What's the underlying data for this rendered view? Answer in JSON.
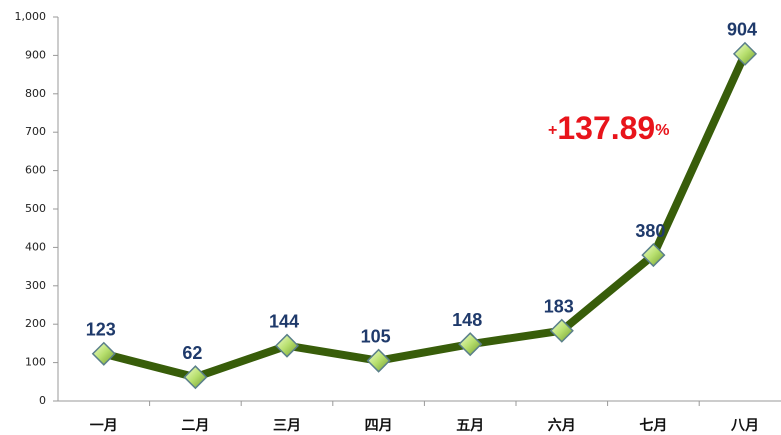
{
  "chart_data": {
    "type": "line",
    "categories": [
      "一月",
      "二月",
      "三月",
      "四月",
      "五月",
      "六月",
      "七月",
      "八月"
    ],
    "series": [
      {
        "name": null,
        "color": "#385d0a",
        "values": [
          123,
          62,
          144,
          105,
          148,
          183,
          380,
          904
        ]
      }
    ],
    "ylim": [
      0,
      1000
    ],
    "yticks": [
      0,
      100,
      200,
      300,
      400,
      500,
      600,
      700,
      800,
      900,
      {
        "value": 1000,
        "label": "1,000"
      }
    ],
    "grid": false,
    "annotation": {
      "sign": "+",
      "number": "137.89",
      "unit": "%"
    }
  }
}
